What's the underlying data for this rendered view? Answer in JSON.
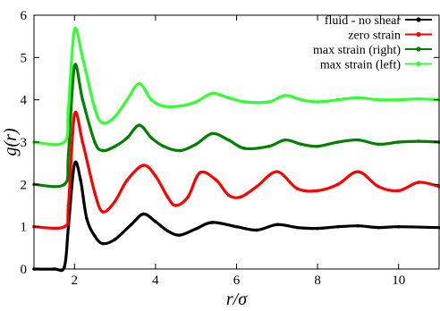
{
  "chart_data": {
    "type": "line",
    "xlabel": "r/σ",
    "ylabel": "g(r)",
    "xlim": [
      1,
      11
    ],
    "ylim": [
      0,
      6
    ],
    "xticks": [
      2,
      4,
      6,
      8,
      10
    ],
    "yticks": [
      0,
      1,
      2,
      3,
      4,
      5,
      6
    ],
    "grid": false,
    "legend_position": "top-right",
    "series": [
      {
        "name": "fluid - no shear",
        "color": "#000000",
        "x": [
          1.0,
          1.5,
          1.75,
          1.85,
          2.0,
          2.15,
          2.3,
          2.5,
          2.7,
          3.0,
          3.4,
          3.7,
          4.0,
          4.3,
          4.6,
          5.0,
          5.4,
          6.0,
          6.5,
          7.0,
          7.5,
          8.0,
          8.5,
          9.0,
          9.5,
          10.0,
          11.0
        ],
        "y": [
          0.0,
          0.0,
          0.05,
          1.0,
          2.48,
          2.1,
          1.2,
          0.78,
          0.6,
          0.7,
          1.05,
          1.3,
          1.12,
          0.9,
          0.8,
          0.95,
          1.1,
          1.0,
          0.92,
          1.05,
          0.98,
          0.96,
          1.0,
          1.02,
          0.98,
          1.0,
          0.98
        ]
      },
      {
        "name": "zero strain",
        "color": "#ff0000",
        "x": [
          1.0,
          1.75,
          1.85,
          2.0,
          2.2,
          2.5,
          2.7,
          3.0,
          3.3,
          3.7,
          4.0,
          4.3,
          4.5,
          4.8,
          5.1,
          5.5,
          5.8,
          6.1,
          6.5,
          7.0,
          7.5,
          8.0,
          8.5,
          9.0,
          9.5,
          10.0,
          10.5,
          11.0
        ],
        "y": [
          1.0,
          1.0,
          1.5,
          3.65,
          3.0,
          1.8,
          1.35,
          1.6,
          2.1,
          2.45,
          2.2,
          1.7,
          1.5,
          1.7,
          2.28,
          2.1,
          1.75,
          1.7,
          1.95,
          2.3,
          1.9,
          1.85,
          2.0,
          2.3,
          1.95,
          1.85,
          2.05,
          1.95
        ]
      },
      {
        "name": "max strain (right)",
        "color": "#008000",
        "x": [
          1.0,
          1.75,
          1.85,
          2.0,
          2.2,
          2.5,
          2.7,
          3.0,
          3.3,
          3.6,
          3.9,
          4.2,
          4.6,
          5.0,
          5.4,
          5.8,
          6.2,
          6.8,
          7.2,
          7.6,
          8.0,
          8.5,
          9.0,
          9.5,
          10.0,
          10.5,
          11.0
        ],
        "y": [
          2.0,
          2.0,
          2.7,
          4.8,
          4.0,
          3.0,
          2.8,
          2.9,
          3.1,
          3.4,
          3.1,
          2.9,
          2.8,
          2.95,
          3.2,
          3.05,
          2.85,
          2.9,
          3.05,
          2.95,
          2.9,
          3.0,
          3.05,
          2.95,
          3.0,
          3.02,
          3.0
        ]
      },
      {
        "name": "max strain  (left)",
        "color": "#33ff33",
        "x": [
          1.0,
          1.75,
          1.85,
          2.0,
          2.2,
          2.5,
          2.7,
          3.0,
          3.3,
          3.6,
          3.9,
          4.2,
          4.6,
          5.0,
          5.4,
          5.8,
          6.2,
          6.8,
          7.2,
          7.6,
          8.0,
          8.5,
          9.0,
          9.5,
          10.0,
          10.5,
          11.0
        ],
        "y": [
          3.0,
          3.0,
          3.8,
          5.65,
          5.0,
          3.8,
          3.45,
          3.6,
          4.0,
          4.38,
          4.0,
          3.85,
          3.85,
          3.95,
          4.15,
          4.05,
          3.95,
          3.95,
          4.1,
          4.0,
          3.95,
          4.0,
          4.05,
          4.0,
          4.0,
          4.02,
          4.0
        ]
      }
    ]
  }
}
